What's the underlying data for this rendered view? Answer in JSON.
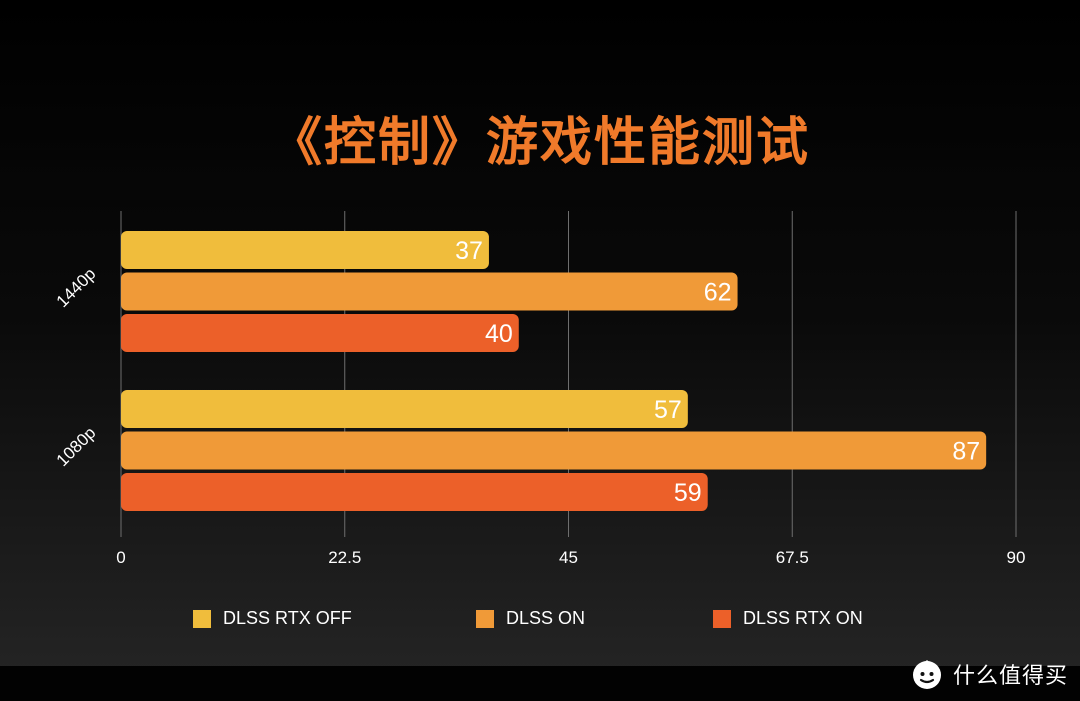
{
  "chart_data": {
    "type": "bar",
    "orientation": "horizontal",
    "title": "《控制》游戏性能测试",
    "categories": [
      "1440p",
      "1080p"
    ],
    "series": [
      {
        "name": "DLSS RTX OFF",
        "color": "#f0bd3c",
        "values": [
          37,
          57
        ]
      },
      {
        "name": "DLSS ON",
        "color": "#f09a38",
        "values": [
          62,
          87
        ]
      },
      {
        "name": "DLSS RTX ON",
        "color": "#ec6029",
        "values": [
          40,
          59
        ]
      }
    ],
    "xlim": [
      0,
      90
    ],
    "xticks": [
      "0",
      "22.5",
      "45",
      "67.5",
      "90"
    ],
    "grid": true,
    "legend_position": "bottom"
  },
  "watermark": {
    "text": "什么值得买",
    "logo_icon": "smzdm-logo-icon"
  }
}
